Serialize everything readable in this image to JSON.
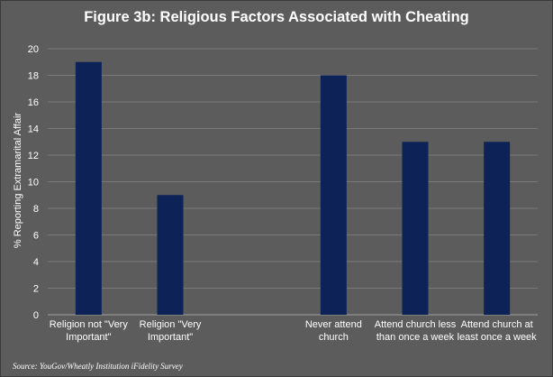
{
  "chart_data": {
    "type": "bar",
    "title": "Figure 3b: Religious Factors Associated with Cheating",
    "ylabel": "% Reporting Extramarital Affair",
    "xlabel": "",
    "ylim": [
      0,
      20
    ],
    "yticks": [
      0,
      2,
      4,
      6,
      8,
      10,
      12,
      14,
      16,
      18,
      20
    ],
    "grid": true,
    "bar_color": "#0d2257",
    "categories": [
      [
        "Religion not \"Very",
        "Important\""
      ],
      [
        "Religion \"Very",
        "Important\""
      ],
      [
        "",
        ""
      ],
      [
        "Never attend",
        "church"
      ],
      [
        "Attend church less",
        "than once a week"
      ],
      [
        "Attend church at",
        "least once a week"
      ]
    ],
    "values": [
      19,
      9,
      null,
      18,
      13,
      13
    ]
  },
  "source": "Source: YouGov/Wheatly Institution iFidelity Survey"
}
